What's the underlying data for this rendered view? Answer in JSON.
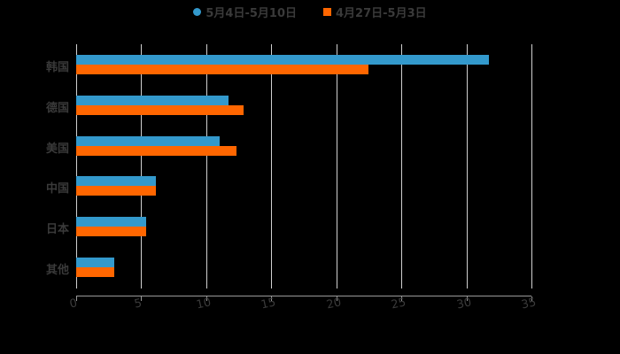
{
  "legend": [
    {
      "label": "5月4日-5月10日",
      "color": "#3399cc",
      "shape": "circle"
    },
    {
      "label": "4月27日-5月3日",
      "color": "#ff6600",
      "shape": "square"
    }
  ],
  "chart_data": {
    "type": "bar",
    "orientation": "horizontal",
    "title": "",
    "xlabel": "",
    "ylabel": "",
    "categories": [
      "韩国",
      "德国",
      "美国",
      "中国",
      "日本",
      "其他"
    ],
    "series": [
      {
        "name": "5月4日-5月10日",
        "color": "#3399cc",
        "values": [
          31.7,
          11.7,
          11.0,
          6.1,
          5.4,
          2.9
        ]
      },
      {
        "name": "4月27日-5月3日",
        "color": "#ff6600",
        "values": [
          22.5,
          12.9,
          12.3,
          6.1,
          5.4,
          2.9
        ]
      }
    ],
    "xlim": [
      0,
      35
    ],
    "x_ticks": [
      "0",
      "5",
      "10",
      "15",
      "20",
      "25",
      "30",
      "35"
    ],
    "grid": true,
    "legend_position": "top"
  }
}
